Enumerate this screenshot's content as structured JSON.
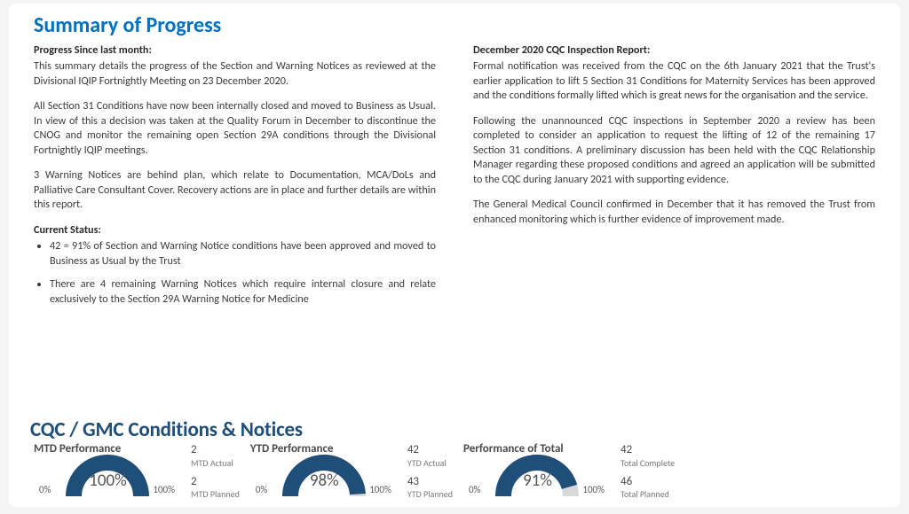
{
  "title": "Summary of Progress",
  "left": {
    "h1": "Progress Since last month:",
    "p1": "This summary details the progress of the Section and Warning Notices as reviewed at the Divisional IQIP Fortnightly Meeting on 23 December 2020.",
    "p2": "All Section 31 Conditions have now been internally closed and moved to Business as Usual.  In view of this a decision was taken at the Quality Forum in December to discontinue the CNOG and monitor the remaining open Section 29A conditions through the Divisional Fortnightly IQIP meetings.",
    "p3": "3 Warning Notices are behind plan, which relate to Documentation, MCA/DoLs and Palliative Care Consultant Cover.  Recovery actions are in place and further details are within this report.",
    "h2": "Current Status:",
    "b1": "42 = 91% of Section and Warning Notice conditions have been approved and moved to Business as Usual by the Trust",
    "b2": "There are 4 remaining Warning Notices which require internal closure and relate exclusively to the Section 29A Warning Notice for Medicine"
  },
  "right": {
    "h1": "December 2020 CQC Inspection Report:",
    "p1": "Formal notification was received from the CQC on the 6th January 2021 that the Trust's earlier application to lift 5 Section 31 Conditions for Maternity Services has been approved and the conditions formally lifted which is great news for the organisation and the service.",
    "p2": "Following the unannounced CQC inspections in September 2020 a review has been completed to consider an application to request the lifting of 12 of the remaining 17 Section 31 conditions.   A preliminary discussion has been held with the CQC Relationship Manager regarding these proposed conditions and agreed an application will be submitted to the CQC during January 2021 with supporting evidence.",
    "p3": "The General Medical Council confirmed in December that it has removed the Trust from enhanced monitoring which is further evidence of improvement made."
  },
  "dash": {
    "title": "CQC / GMC Conditions & Notices",
    "arc_color": "#1f4e79",
    "track_color": "#d9d9d9",
    "gauges": [
      {
        "label": "MTD Performance",
        "percent": 100,
        "display": "100%",
        "min": "0%",
        "max": "100%",
        "stats": [
          {
            "val": "2",
            "lab": "MTD Actual"
          },
          {
            "val": "2",
            "lab": "MTD Planned"
          }
        ]
      },
      {
        "label": "YTD Performance",
        "percent": 98,
        "display": "98%",
        "min": "0%",
        "max": "100%",
        "stats": [
          {
            "val": "42",
            "lab": "YTD Actual"
          },
          {
            "val": "43",
            "lab": "YTD Planned"
          }
        ]
      },
      {
        "label": "Performance of Total",
        "percent": 91,
        "display": "91%",
        "min": "0%",
        "max": "100%",
        "stats": [
          {
            "val": "42",
            "lab": "Total Complete"
          },
          {
            "val": "46",
            "lab": "Total Planned"
          }
        ]
      }
    ]
  }
}
